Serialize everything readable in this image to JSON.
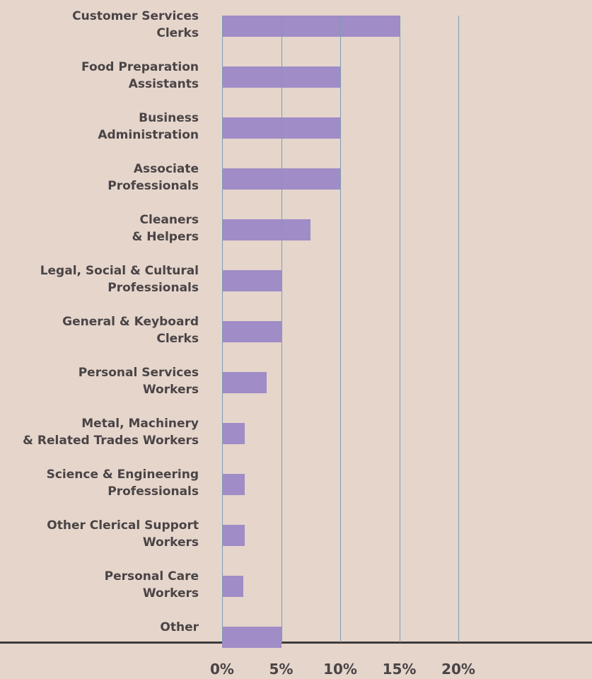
{
  "chart_data": {
    "type": "barh",
    "categories": [
      "Customer Services\nClerks",
      "Food Preparation\nAssistants",
      "Business\nAdministration",
      "Associate\nProfessionals",
      "Cleaners\n& Helpers",
      "Legal, Social & Cultural\nProfessionals",
      "General & Keyboard\nClerks",
      "Personal Services\nWorkers",
      "Metal, Machinery\n& Related Trades Workers",
      "Science & Engineering\nProfessionals",
      "Other Clerical Support\nWorkers",
      "Personal Care\nWorkers",
      "Other"
    ],
    "values": [
      15,
      10,
      10,
      10,
      7.5,
      5,
      5,
      3.8,
      1.9,
      1.9,
      1.9,
      1.8,
      5
    ],
    "color": "#a08cc6",
    "xlim": [
      0,
      20
    ],
    "xticks": [
      {
        "value": 0,
        "label": "0%"
      },
      {
        "value": 5,
        "label": "5%"
      },
      {
        "value": 10,
        "label": "10%"
      },
      {
        "value": 15,
        "label": "15%"
      },
      {
        "value": 20,
        "label": "20%"
      }
    ],
    "grid": true
  }
}
